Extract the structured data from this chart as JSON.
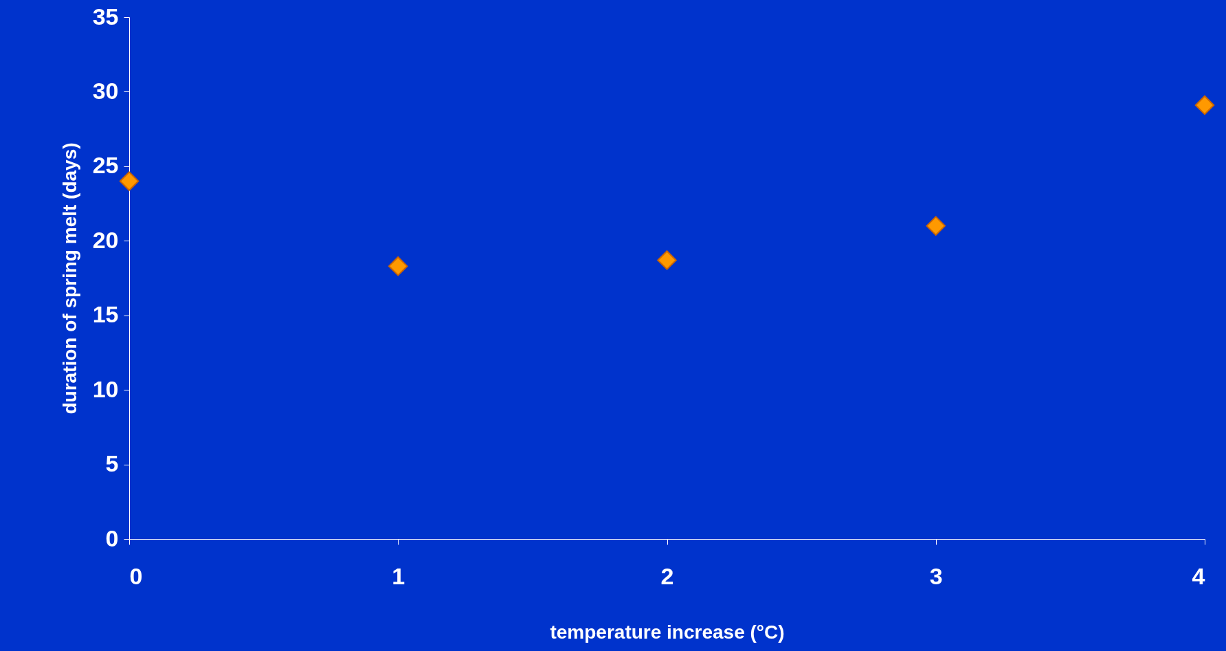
{
  "chart_data": {
    "type": "scatter",
    "xlabel": "temperature increase (°C)",
    "ylabel": "duration of spring melt (days)",
    "x": [
      0,
      1,
      2,
      3,
      4
    ],
    "series": [
      {
        "color": "#ff9900",
        "values": [
          24,
          18.3,
          18.7,
          21,
          29.1
        ]
      }
    ],
    "xlim": [
      0,
      4
    ],
    "xticks": [
      0,
      1,
      2,
      3,
      4
    ],
    "ylim": [
      0,
      35
    ],
    "yticks": [
      0,
      5,
      10,
      15,
      20,
      25,
      30,
      35
    ],
    "marker": "diamond",
    "grid": false,
    "legend": false
  }
}
